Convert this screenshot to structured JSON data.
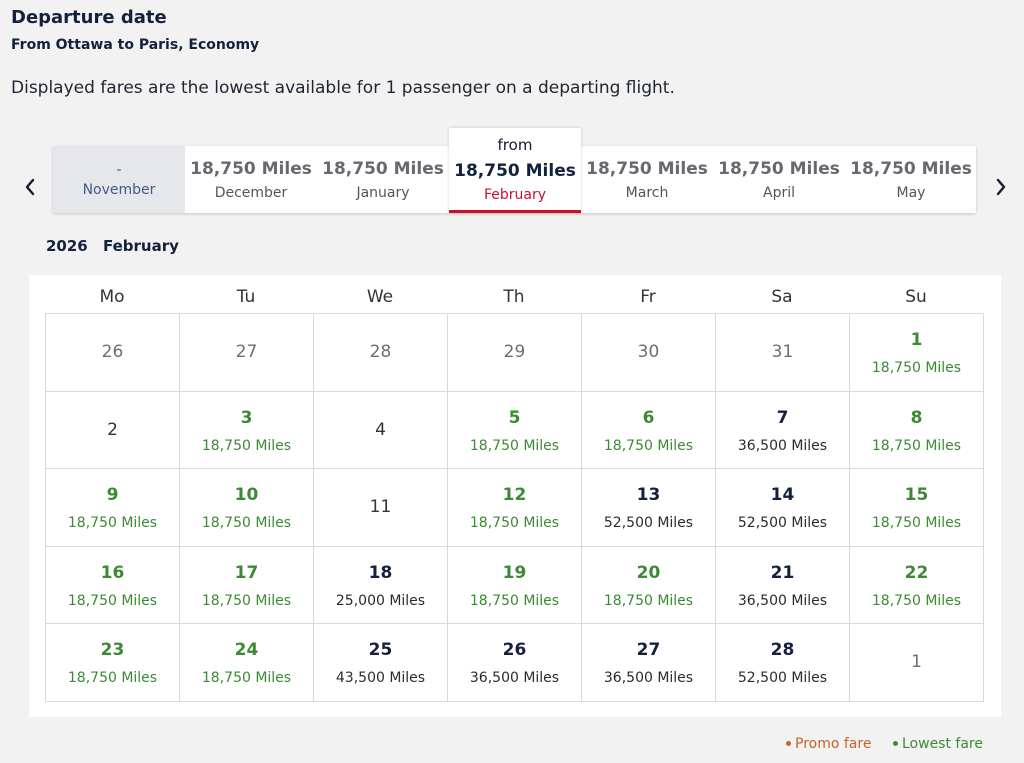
{
  "header": {
    "title": "Departure date",
    "route": "From Ottawa to Paris, Economy",
    "note": "Displayed fares are the lowest available for 1 passenger on a departing flight."
  },
  "months": [
    {
      "price": "-",
      "name": "November",
      "state": "unavailable"
    },
    {
      "price": "18,750 Miles",
      "name": "December",
      "state": "normal"
    },
    {
      "price": "18,750 Miles",
      "name": "January",
      "state": "normal"
    },
    {
      "from": "from",
      "price": "18,750 Miles",
      "name": "February",
      "state": "selected"
    },
    {
      "price": "18,750 Miles",
      "name": "March",
      "state": "normal"
    },
    {
      "price": "18,750 Miles",
      "name": "April",
      "state": "normal"
    },
    {
      "price": "18,750 Miles",
      "name": "May",
      "state": "normal"
    }
  ],
  "calendar": {
    "year": "2026",
    "month": "February",
    "weekdays": [
      "Mo",
      "Tu",
      "We",
      "Th",
      "Fr",
      "Sa",
      "Su"
    ],
    "days": [
      {
        "day": "26",
        "fare": "",
        "type": "outside"
      },
      {
        "day": "27",
        "fare": "",
        "type": "outside"
      },
      {
        "day": "28",
        "fare": "",
        "type": "outside"
      },
      {
        "day": "29",
        "fare": "",
        "type": "outside"
      },
      {
        "day": "30",
        "fare": "",
        "type": "outside"
      },
      {
        "day": "31",
        "fare": "",
        "type": "outside"
      },
      {
        "day": "1",
        "fare": "18,750 Miles",
        "type": "low"
      },
      {
        "day": "2",
        "fare": "",
        "type": "nofare"
      },
      {
        "day": "3",
        "fare": "18,750 Miles",
        "type": "low"
      },
      {
        "day": "4",
        "fare": "",
        "type": "nofare"
      },
      {
        "day": "5",
        "fare": "18,750 Miles",
        "type": "low"
      },
      {
        "day": "6",
        "fare": "18,750 Miles",
        "type": "low"
      },
      {
        "day": "7",
        "fare": "36,500 Miles",
        "type": "regular"
      },
      {
        "day": "8",
        "fare": "18,750 Miles",
        "type": "low"
      },
      {
        "day": "9",
        "fare": "18,750 Miles",
        "type": "low"
      },
      {
        "day": "10",
        "fare": "18,750 Miles",
        "type": "low"
      },
      {
        "day": "11",
        "fare": "",
        "type": "nofare"
      },
      {
        "day": "12",
        "fare": "18,750 Miles",
        "type": "low"
      },
      {
        "day": "13",
        "fare": "52,500 Miles",
        "type": "regular"
      },
      {
        "day": "14",
        "fare": "52,500 Miles",
        "type": "regular"
      },
      {
        "day": "15",
        "fare": "18,750 Miles",
        "type": "low"
      },
      {
        "day": "16",
        "fare": "18,750 Miles",
        "type": "low"
      },
      {
        "day": "17",
        "fare": "18,750 Miles",
        "type": "low"
      },
      {
        "day": "18",
        "fare": "25,000 Miles",
        "type": "regular"
      },
      {
        "day": "19",
        "fare": "18,750 Miles",
        "type": "low"
      },
      {
        "day": "20",
        "fare": "18,750 Miles",
        "type": "low"
      },
      {
        "day": "21",
        "fare": "36,500 Miles",
        "type": "regular"
      },
      {
        "day": "22",
        "fare": "18,750 Miles",
        "type": "low"
      },
      {
        "day": "23",
        "fare": "18,750 Miles",
        "type": "low"
      },
      {
        "day": "24",
        "fare": "18,750 Miles",
        "type": "low"
      },
      {
        "day": "25",
        "fare": "43,500 Miles",
        "type": "regular"
      },
      {
        "day": "26",
        "fare": "36,500 Miles",
        "type": "regular"
      },
      {
        "day": "27",
        "fare": "36,500 Miles",
        "type": "regular"
      },
      {
        "day": "28",
        "fare": "52,500 Miles",
        "type": "regular"
      },
      {
        "day": "1",
        "fare": "",
        "type": "outside"
      }
    ]
  },
  "legend": {
    "promo": "Promo fare",
    "lowest": "Lowest fare"
  },
  "colors": {
    "promo": "#c7632b",
    "lowest": "#3c8a33",
    "selected_underline": "#c8102e",
    "navy": "#14213d"
  },
  "icons": {
    "prev": "chevron-left-icon",
    "next": "chevron-right-icon"
  }
}
